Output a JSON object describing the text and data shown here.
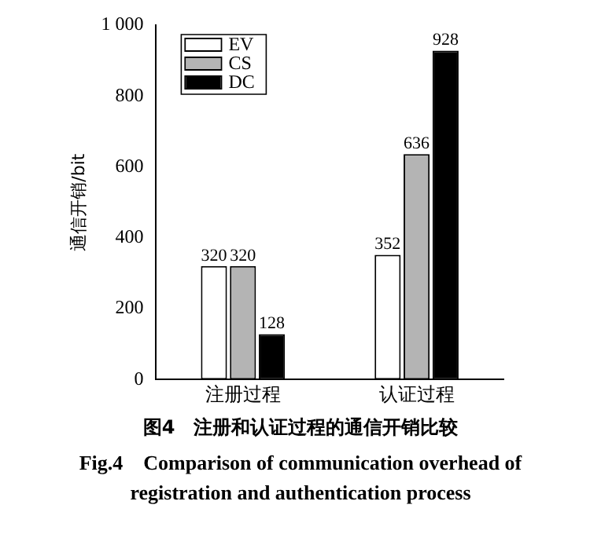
{
  "chart_data": {
    "type": "bar",
    "title": "图4　注册和认证过程的通信开销比较",
    "subtitle": "Fig.4　Comparison of communication overhead of registration and authentication process",
    "ylabel": "通信开销/bit",
    "categories": [
      "注册过程",
      "认证过程"
    ],
    "series": [
      {
        "name": "EV",
        "color": "#ffffff",
        "values": [
          320,
          352
        ]
      },
      {
        "name": "CS",
        "color": "#b4b4b4",
        "values": [
          320,
          636
        ]
      },
      {
        "name": "DC",
        "color": "#000000",
        "values": [
          128,
          928
        ]
      }
    ],
    "ylim": [
      0,
      1000
    ],
    "yticks": [
      0,
      200,
      400,
      600,
      800,
      {
        "value": 1000,
        "label": "1 000"
      }
    ],
    "grid": false,
    "legend": "top left",
    "data_labels": true
  }
}
